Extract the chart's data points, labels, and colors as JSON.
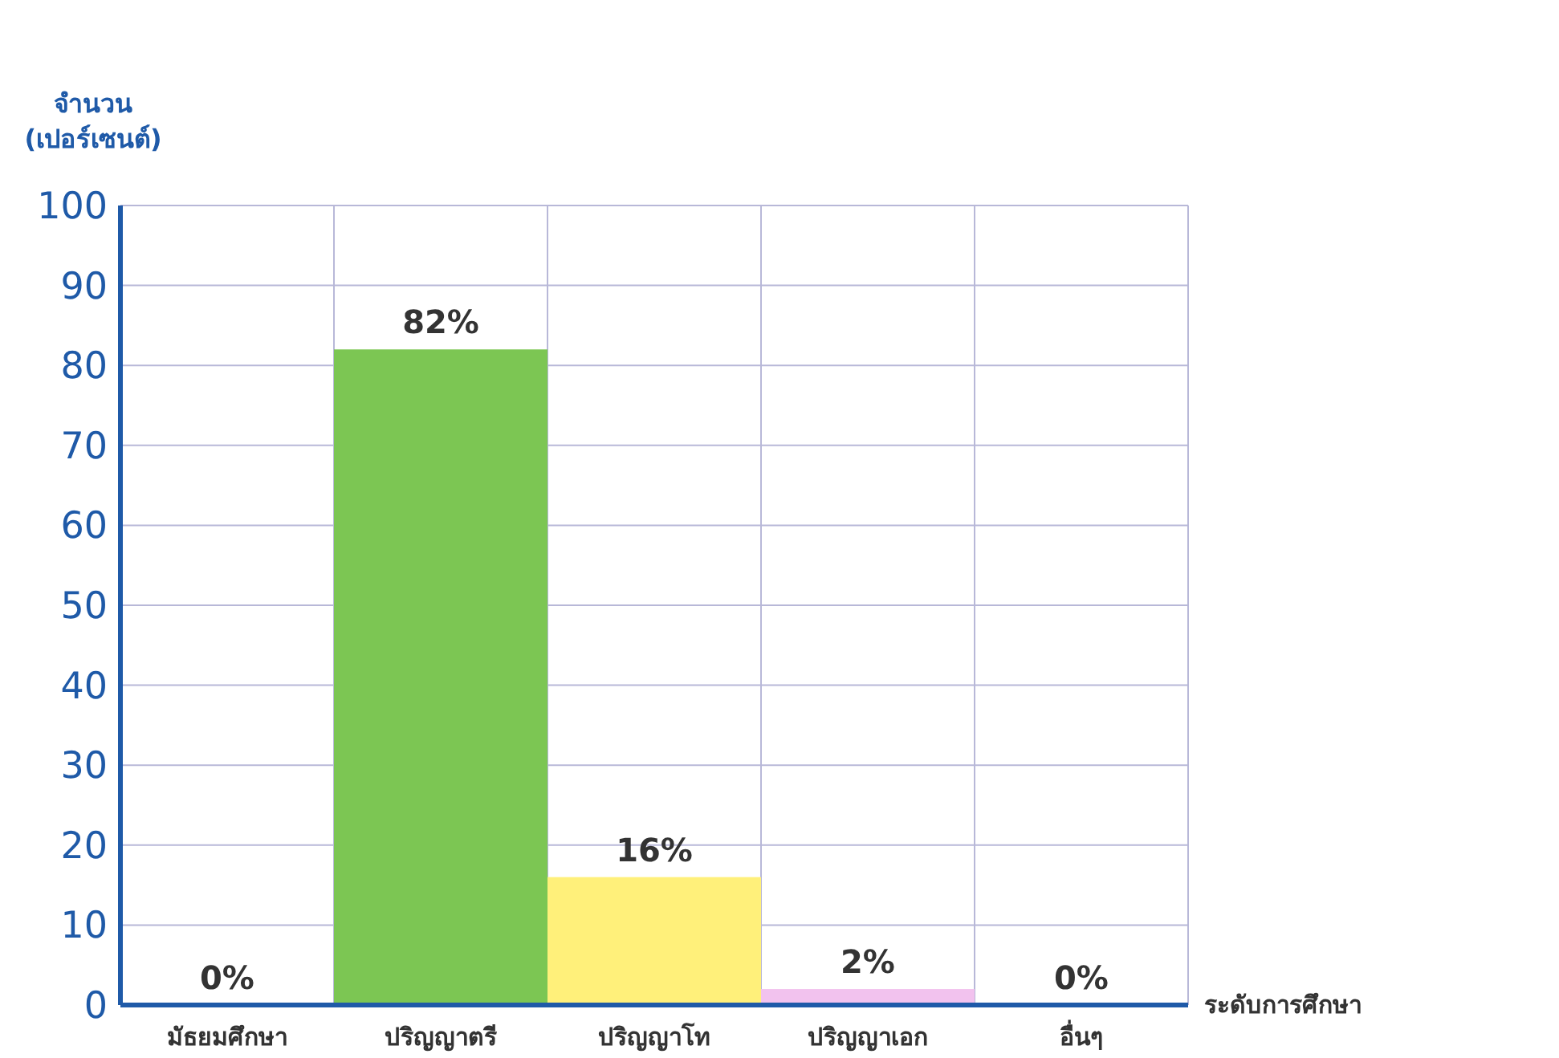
{
  "chart_data": {
    "type": "bar",
    "xlabel": "ระดับการศึกษา",
    "ylabel": "จำนวน\n(เปอร์เซนต์)",
    "categories": [
      "มัธยมศึกษา",
      "ปริญญาตรี",
      "ปริญญาโท",
      "ปริญญาเอก",
      "อื่นๆ"
    ],
    "values": [
      0,
      82,
      16,
      2,
      0
    ],
    "colors": [
      "#7cc653",
      "#7cc653",
      "#fff07a",
      "#f2c2ee",
      "#7cc653"
    ],
    "value_labels": [
      "0%",
      "82%",
      "16%",
      "2%",
      "0%"
    ],
    "ylim": [
      0,
      100
    ],
    "yticks": [
      0,
      10,
      20,
      30,
      40,
      50,
      60,
      70,
      80,
      90,
      100
    ],
    "grid": true
  }
}
